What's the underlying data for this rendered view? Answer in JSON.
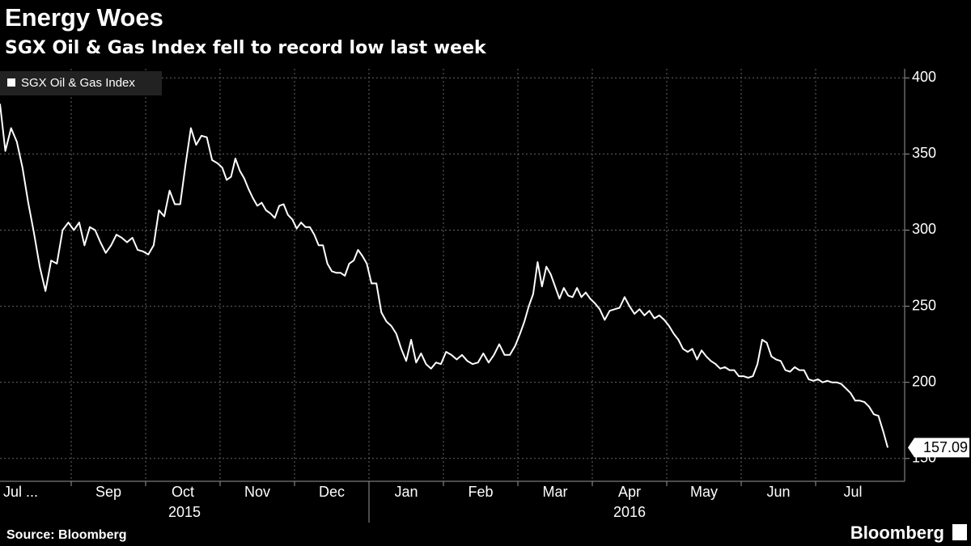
{
  "chart_data": {
    "type": "line",
    "title": "Energy Woes",
    "subtitle": "SGX Oil & Gas Index fell to record low last week",
    "source": "Source: Bloomberg",
    "brand": "Bloomberg",
    "categories": [
      "Jul ...",
      "Sep",
      "Oct",
      "Nov",
      "Dec",
      "Jan",
      "Feb",
      "Mar",
      "Apr",
      "May",
      "Jun",
      "Jul"
    ],
    "years": [
      "2015",
      "2016"
    ],
    "series": [
      {
        "name": "SGX Oil & Gas Index",
        "color": "#ffffff",
        "values": [
          [
            383,
            352,
            367,
            358,
            341,
            318,
            298,
            276,
            260,
            280,
            278,
            300,
            305
          ],
          [
            300,
            305,
            290,
            302,
            300,
            292,
            285,
            290,
            297,
            295,
            292,
            295,
            287,
            286
          ],
          [
            284,
            290,
            313,
            309,
            326,
            317,
            317,
            343,
            367,
            356,
            362,
            361,
            346,
            344
          ],
          [
            341,
            333,
            335,
            347,
            339,
            334,
            327,
            321,
            316,
            318,
            313,
            311,
            308,
            316,
            317,
            310,
            307
          ],
          [
            301,
            305,
            302,
            302,
            297,
            290,
            290,
            278,
            273,
            272,
            272,
            270,
            278,
            280,
            287,
            283,
            278
          ],
          [
            265,
            265,
            246,
            240,
            237,
            232,
            222,
            214,
            228,
            213,
            219,
            212,
            209,
            213,
            212
          ],
          [
            220,
            218,
            215,
            218,
            214,
            212,
            213,
            219,
            213,
            218,
            225,
            218,
            218,
            224
          ],
          [
            232,
            240,
            250,
            258,
            279,
            263,
            276,
            271,
            263,
            255,
            262,
            257,
            256,
            262,
            256,
            259,
            255
          ],
          [
            252,
            248,
            241,
            247,
            248,
            249,
            256,
            250,
            245,
            248,
            244,
            247,
            242,
            244,
            241
          ],
          [
            237,
            232,
            228,
            222,
            220,
            222,
            215,
            221,
            217,
            214,
            212,
            209,
            210,
            208,
            208,
            204
          ],
          [
            204,
            203,
            204,
            212,
            228,
            226,
            217,
            215,
            214,
            208,
            207,
            210,
            208,
            208,
            202,
            201
          ],
          [
            202,
            200,
            201,
            200,
            200,
            199,
            196,
            193,
            188,
            188,
            187,
            184,
            179,
            178,
            168,
            157.09
          ]
        ]
      }
    ],
    "last_label": "157.09",
    "ylim": [
      135,
      406
    ],
    "yticks": [
      150,
      200,
      250,
      300,
      350,
      400
    ],
    "grid": true,
    "legend": "top-left"
  }
}
